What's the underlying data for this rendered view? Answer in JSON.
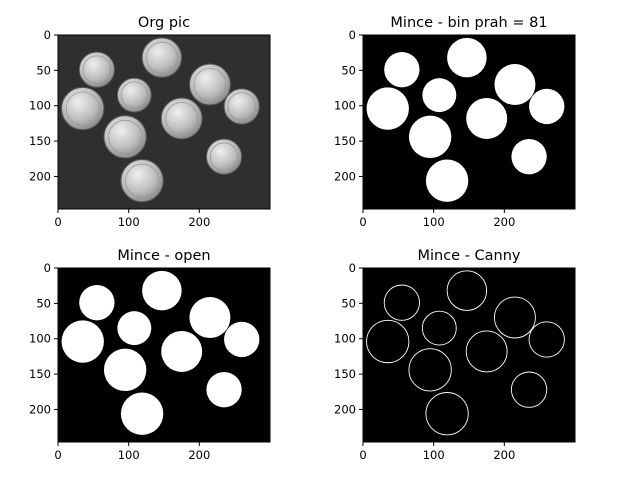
{
  "chart_data": [
    {
      "type": "image",
      "title": "Org pic",
      "style": "grayscale",
      "xlim": [
        0,
        300
      ],
      "ylim": [
        246,
        0
      ],
      "xticks": [
        0,
        100,
        200
      ],
      "yticks": [
        0,
        50,
        100,
        150,
        200
      ],
      "background": "#2f2f2f",
      "coins": [
        {
          "cx": 55,
          "cy": 49,
          "r": 25
        },
        {
          "cx": 147,
          "cy": 32,
          "r": 28
        },
        {
          "cx": 108,
          "cy": 85,
          "r": 24
        },
        {
          "cx": 215,
          "cy": 70,
          "r": 29
        },
        {
          "cx": 260,
          "cy": 101,
          "r": 25
        },
        {
          "cx": 35,
          "cy": 104,
          "r": 30
        },
        {
          "cx": 175,
          "cy": 118,
          "r": 29
        },
        {
          "cx": 95,
          "cy": 144,
          "r": 30
        },
        {
          "cx": 235,
          "cy": 172,
          "r": 25
        },
        {
          "cx": 119,
          "cy": 206,
          "r": 30
        }
      ]
    },
    {
      "type": "image",
      "title": "Mince - bin prah = 81",
      "style": "binary",
      "xlim": [
        0,
        300
      ],
      "ylim": [
        246,
        0
      ],
      "xticks": [
        0,
        100,
        200
      ],
      "yticks": [
        0,
        50,
        100,
        150,
        200
      ],
      "coins": [
        {
          "cx": 55,
          "cy": 49,
          "r": 25
        },
        {
          "cx": 147,
          "cy": 32,
          "r": 28
        },
        {
          "cx": 108,
          "cy": 85,
          "r": 24
        },
        {
          "cx": 215,
          "cy": 70,
          "r": 29
        },
        {
          "cx": 260,
          "cy": 101,
          "r": 25
        },
        {
          "cx": 35,
          "cy": 104,
          "r": 30
        },
        {
          "cx": 175,
          "cy": 118,
          "r": 29
        },
        {
          "cx": 95,
          "cy": 144,
          "r": 30
        },
        {
          "cx": 235,
          "cy": 172,
          "r": 25
        },
        {
          "cx": 119,
          "cy": 206,
          "r": 30
        }
      ]
    },
    {
      "type": "image",
      "title": "Mince - open",
      "style": "binary",
      "xlim": [
        0,
        300
      ],
      "ylim": [
        246,
        0
      ],
      "xticks": [
        0,
        100,
        200
      ],
      "yticks": [
        0,
        50,
        100,
        150,
        200
      ],
      "coins": [
        {
          "cx": 55,
          "cy": 49,
          "r": 25
        },
        {
          "cx": 147,
          "cy": 32,
          "r": 28
        },
        {
          "cx": 108,
          "cy": 85,
          "r": 24
        },
        {
          "cx": 215,
          "cy": 70,
          "r": 29
        },
        {
          "cx": 260,
          "cy": 101,
          "r": 25
        },
        {
          "cx": 35,
          "cy": 104,
          "r": 30
        },
        {
          "cx": 175,
          "cy": 118,
          "r": 29
        },
        {
          "cx": 95,
          "cy": 144,
          "r": 30
        },
        {
          "cx": 235,
          "cy": 172,
          "r": 25
        },
        {
          "cx": 119,
          "cy": 206,
          "r": 30
        }
      ]
    },
    {
      "type": "image",
      "title": "Mince - Canny",
      "style": "edges",
      "xlim": [
        0,
        300
      ],
      "ylim": [
        246,
        0
      ],
      "xticks": [
        0,
        100,
        200
      ],
      "yticks": [
        0,
        50,
        100,
        150,
        200
      ],
      "coins": [
        {
          "cx": 55,
          "cy": 49,
          "r": 25
        },
        {
          "cx": 147,
          "cy": 32,
          "r": 28
        },
        {
          "cx": 108,
          "cy": 85,
          "r": 24
        },
        {
          "cx": 215,
          "cy": 70,
          "r": 29
        },
        {
          "cx": 260,
          "cy": 101,
          "r": 25
        },
        {
          "cx": 35,
          "cy": 104,
          "r": 30
        },
        {
          "cx": 175,
          "cy": 118,
          "r": 29
        },
        {
          "cx": 95,
          "cy": 144,
          "r": 30
        },
        {
          "cx": 235,
          "cy": 172,
          "r": 25
        },
        {
          "cx": 119,
          "cy": 206,
          "r": 30
        }
      ]
    }
  ]
}
